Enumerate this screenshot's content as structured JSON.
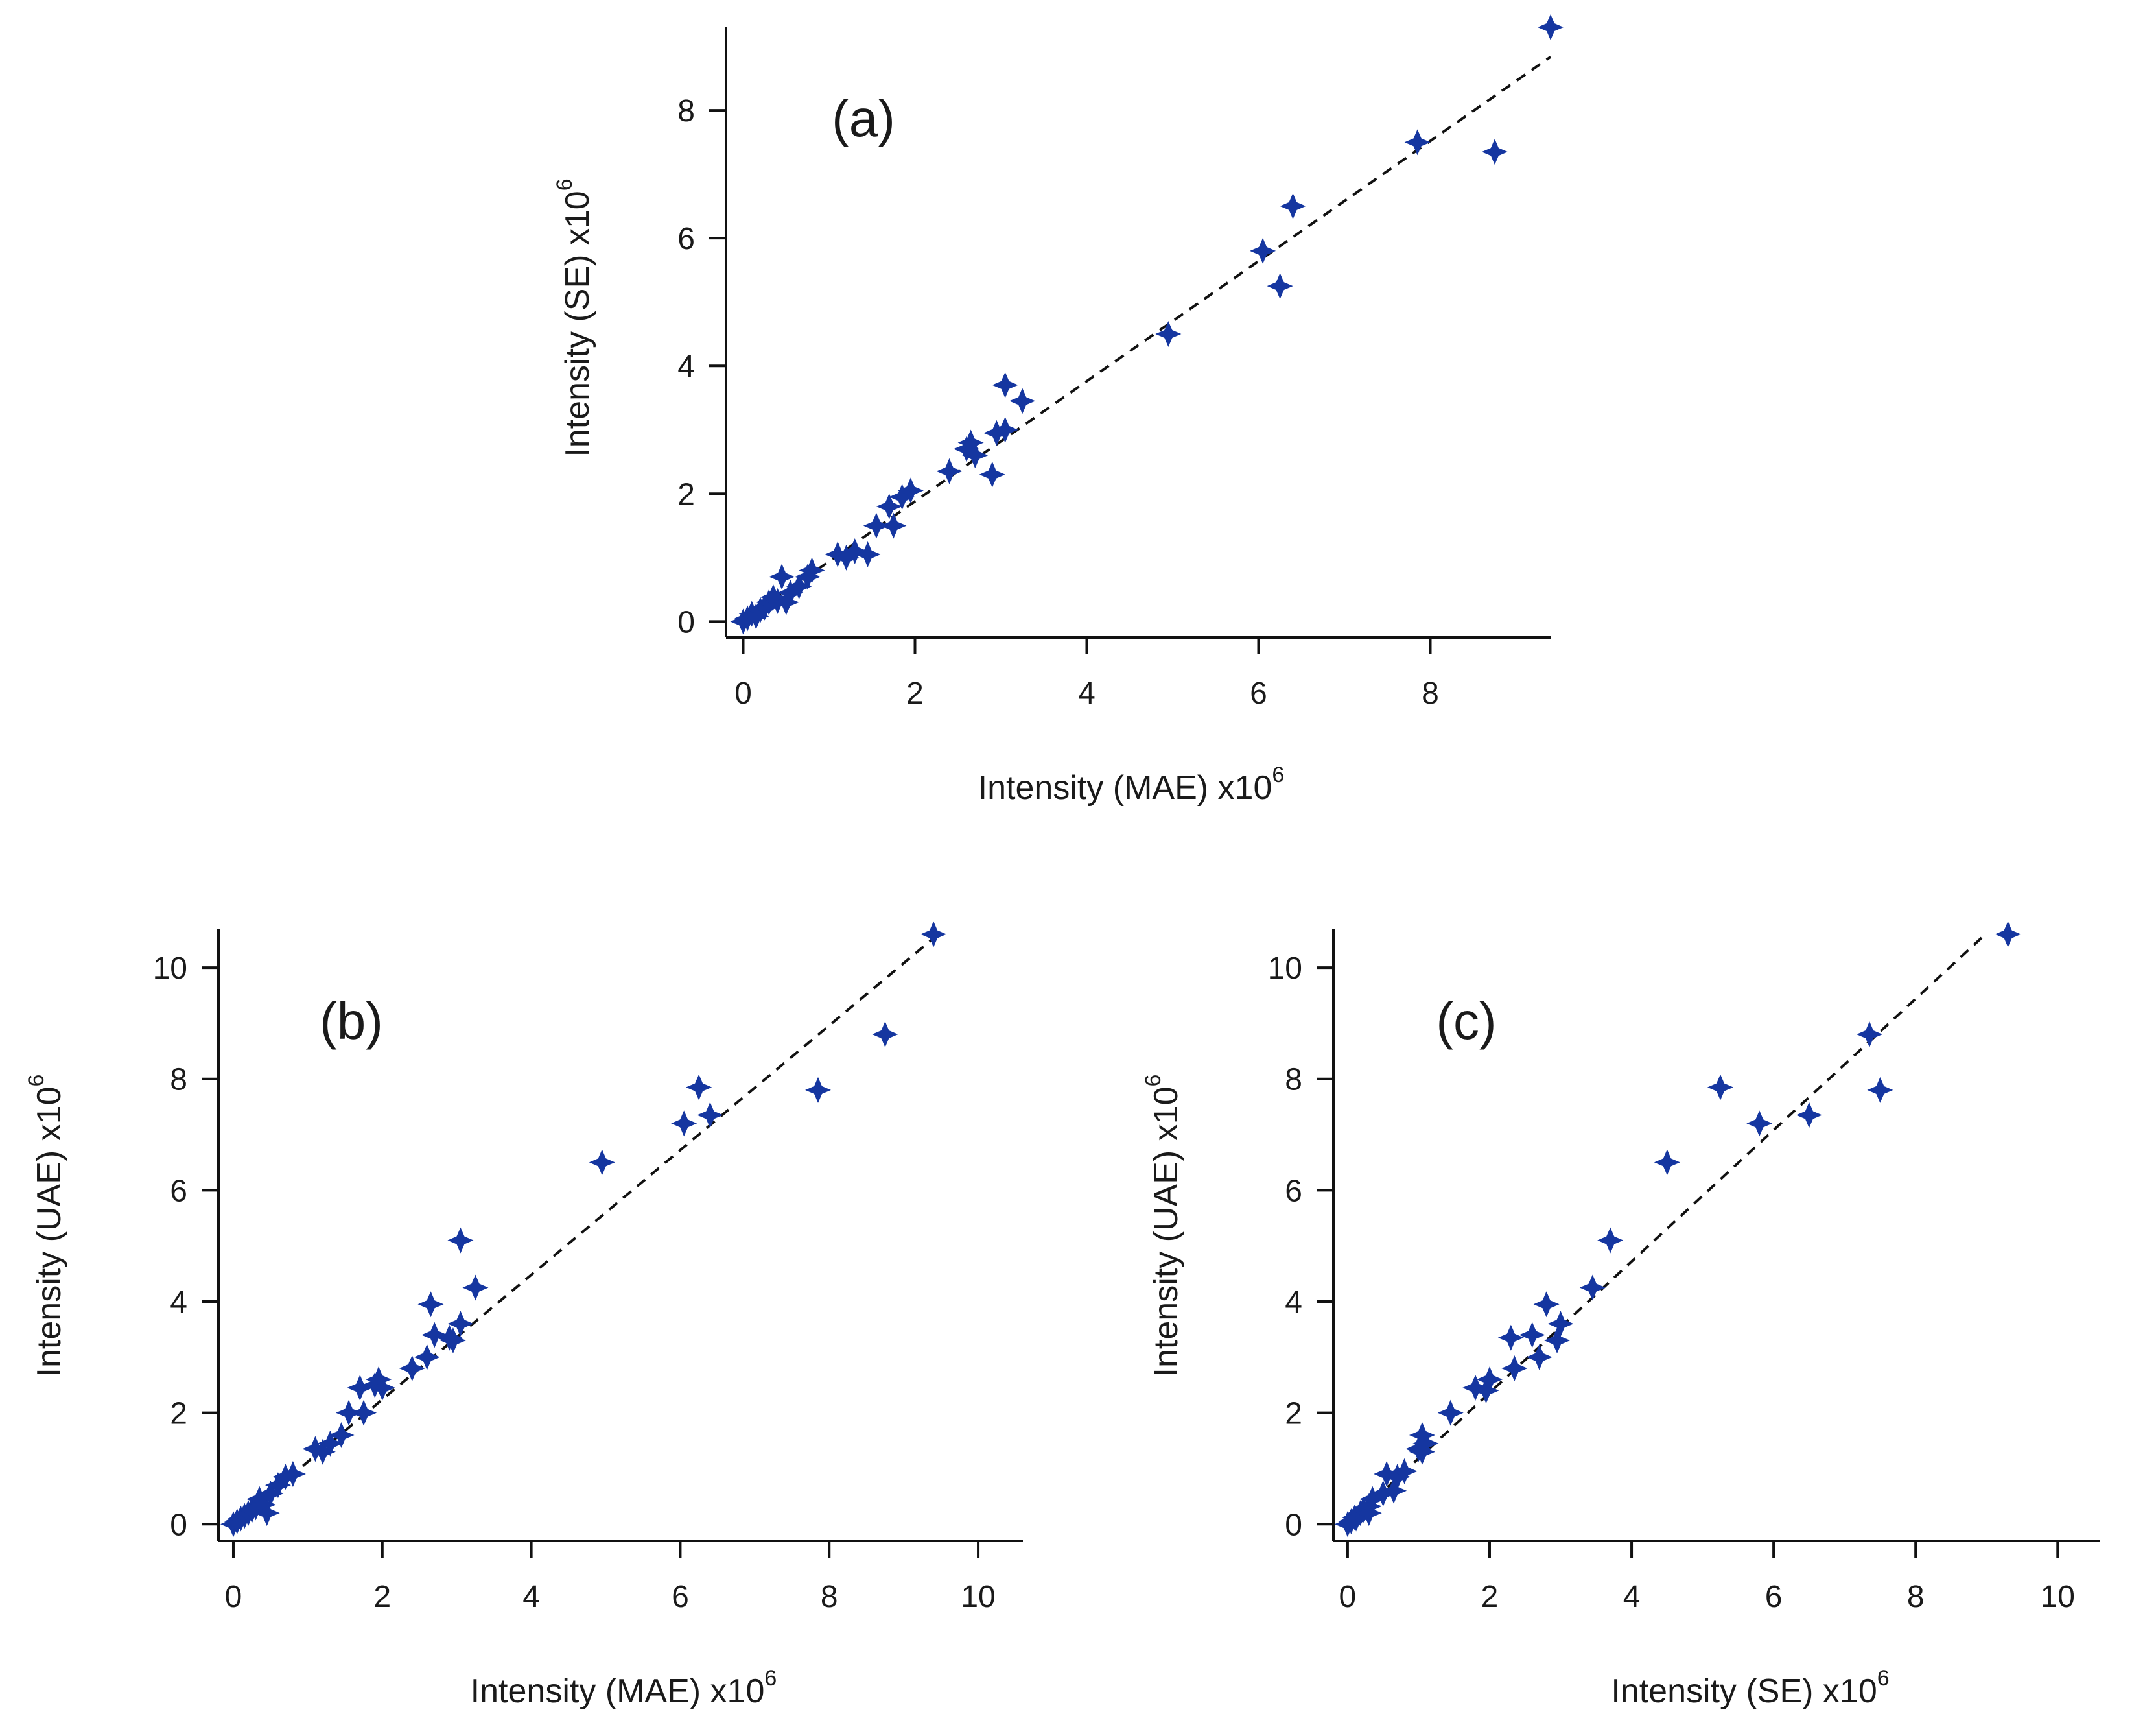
{
  "colors": {
    "marker": "#1536a0",
    "axis": "#111111",
    "background": "#ffffff"
  },
  "marker_shape": "four-point-star",
  "chart_data": [
    {
      "id": "a",
      "type": "scatter",
      "panel_label": "(a)",
      "xlabel": {
        "text": "Intensity (MAE) x10",
        "sup": "6"
      },
      "ylabel": {
        "text": "Intensity (SE) x10",
        "sup": "6"
      },
      "xlim": [
        -0.2,
        9.4
      ],
      "ylim": [
        -0.25,
        9.3
      ],
      "xticks": [
        0,
        2,
        4,
        6,
        8
      ],
      "yticks": [
        0,
        2,
        4,
        6,
        8
      ],
      "xtick_labels": [
        "0",
        "2",
        "4",
        "6",
        "8"
      ],
      "ytick_labels": [
        "0",
        "2",
        "4",
        "6",
        "8"
      ],
      "fit_line": {
        "slope": 0.94,
        "intercept": 0.0,
        "x_range": [
          0,
          9.4
        ],
        "style": "dashed"
      },
      "points": [
        [
          0.0,
          0.0
        ],
        [
          0.05,
          0.05
        ],
        [
          0.1,
          0.12
        ],
        [
          0.15,
          0.08
        ],
        [
          0.2,
          0.18
        ],
        [
          0.25,
          0.22
        ],
        [
          0.3,
          0.3
        ],
        [
          0.35,
          0.38
        ],
        [
          0.4,
          0.32
        ],
        [
          0.45,
          0.7
        ],
        [
          0.5,
          0.3
        ],
        [
          0.55,
          0.45
        ],
        [
          0.65,
          0.55
        ],
        [
          0.75,
          0.7
        ],
        [
          0.8,
          0.8
        ],
        [
          1.1,
          1.05
        ],
        [
          1.2,
          1.0
        ],
        [
          1.3,
          1.1
        ],
        [
          1.45,
          1.05
        ],
        [
          1.55,
          1.5
        ],
        [
          1.7,
          1.8
        ],
        [
          1.75,
          1.5
        ],
        [
          1.85,
          1.95
        ],
        [
          1.95,
          2.05
        ],
        [
          2.4,
          2.35
        ],
        [
          2.6,
          2.7
        ],
        [
          2.65,
          2.8
        ],
        [
          2.7,
          2.6
        ],
        [
          2.9,
          2.3
        ],
        [
          2.95,
          2.95
        ],
        [
          3.05,
          3.0
        ],
        [
          3.05,
          3.7
        ],
        [
          3.25,
          3.45
        ],
        [
          4.95,
          4.5
        ],
        [
          6.05,
          5.8
        ],
        [
          6.25,
          5.25
        ],
        [
          6.4,
          6.5
        ],
        [
          7.85,
          7.5
        ],
        [
          8.75,
          7.35
        ],
        [
          9.4,
          9.3
        ]
      ]
    },
    {
      "id": "b",
      "type": "scatter",
      "panel_label": "(b)",
      "xlabel": {
        "text": "Intensity (MAE) x10",
        "sup": "6"
      },
      "ylabel": {
        "text": "Intensity (UAE) x10",
        "sup": "6"
      },
      "xlim": [
        -0.2,
        10.6
      ],
      "ylim": [
        -0.3,
        10.7
      ],
      "xticks": [
        0,
        2,
        4,
        6,
        8,
        10
      ],
      "yticks": [
        0,
        2,
        4,
        6,
        8,
        10
      ],
      "xtick_labels": [
        "0",
        "2",
        "4",
        "6",
        "8",
        "10"
      ],
      "ytick_labels": [
        "0",
        "2",
        "4",
        "6",
        "8",
        "10"
      ],
      "fit_line": {
        "slope": 1.12,
        "intercept": 0.0,
        "x_range": [
          0,
          9.4
        ],
        "style": "dashed"
      },
      "points": [
        [
          0.0,
          0.0
        ],
        [
          0.05,
          0.05
        ],
        [
          0.1,
          0.1
        ],
        [
          0.15,
          0.15
        ],
        [
          0.2,
          0.2
        ],
        [
          0.25,
          0.25
        ],
        [
          0.3,
          0.3
        ],
        [
          0.35,
          0.45
        ],
        [
          0.4,
          0.35
        ],
        [
          0.45,
          0.2
        ],
        [
          0.5,
          0.55
        ],
        [
          0.6,
          0.7
        ],
        [
          0.7,
          0.85
        ],
        [
          0.8,
          0.9
        ],
        [
          1.1,
          1.35
        ],
        [
          1.2,
          1.3
        ],
        [
          1.3,
          1.45
        ],
        [
          1.45,
          1.6
        ],
        [
          1.55,
          2.0
        ],
        [
          1.7,
          2.45
        ],
        [
          1.75,
          2.0
        ],
        [
          1.9,
          2.5
        ],
        [
          1.95,
          2.6
        ],
        [
          2.0,
          2.45
        ],
        [
          2.4,
          2.8
        ],
        [
          2.6,
          3.0
        ],
        [
          2.65,
          3.95
        ],
        [
          2.7,
          3.4
        ],
        [
          2.9,
          3.35
        ],
        [
          2.95,
          3.3
        ],
        [
          3.05,
          3.6
        ],
        [
          3.05,
          5.1
        ],
        [
          3.25,
          4.25
        ],
        [
          4.95,
          6.5
        ],
        [
          6.05,
          7.2
        ],
        [
          6.25,
          7.85
        ],
        [
          6.4,
          7.35
        ],
        [
          7.85,
          7.8
        ],
        [
          8.75,
          8.8
        ],
        [
          9.4,
          10.6
        ]
      ]
    },
    {
      "id": "c",
      "type": "scatter",
      "panel_label": "(c)",
      "xlabel": {
        "text": "Intensity (SE) x10",
        "sup": "6"
      },
      "ylabel": {
        "text": "Intensity (UAE) x10",
        "sup": "6"
      },
      "xlim": [
        -0.2,
        10.6
      ],
      "ylim": [
        -0.3,
        10.7
      ],
      "xticks": [
        0,
        2,
        4,
        6,
        8,
        10
      ],
      "yticks": [
        0,
        2,
        4,
        6,
        8,
        10
      ],
      "xtick_labels": [
        "0",
        "2",
        "4",
        "6",
        "8",
        "10"
      ],
      "ytick_labels": [
        "0",
        "2",
        "4",
        "6",
        "8",
        "10"
      ],
      "fit_line": {
        "slope": 1.18,
        "intercept": 0.0,
        "x_range": [
          0,
          9.0
        ],
        "style": "dashed"
      },
      "points": [
        [
          0.0,
          0.0
        ],
        [
          0.05,
          0.05
        ],
        [
          0.1,
          0.12
        ],
        [
          0.12,
          0.1
        ],
        [
          0.18,
          0.2
        ],
        [
          0.22,
          0.25
        ],
        [
          0.3,
          0.32
        ],
        [
          0.3,
          0.2
        ],
        [
          0.35,
          0.45
        ],
        [
          0.5,
          0.55
        ],
        [
          0.55,
          0.9
        ],
        [
          0.65,
          0.6
        ],
        [
          0.7,
          0.85
        ],
        [
          0.8,
          0.95
        ],
        [
          1.0,
          1.35
        ],
        [
          1.05,
          1.3
        ],
        [
          1.05,
          1.6
        ],
        [
          1.1,
          1.45
        ],
        [
          1.45,
          2.0
        ],
        [
          1.8,
          2.45
        ],
        [
          1.95,
          2.4
        ],
        [
          2.0,
          2.6
        ],
        [
          2.3,
          3.35
        ],
        [
          2.35,
          2.8
        ],
        [
          2.6,
          3.4
        ],
        [
          2.7,
          3.0
        ],
        [
          2.8,
          3.95
        ],
        [
          2.95,
          3.3
        ],
        [
          3.0,
          3.6
        ],
        [
          3.45,
          4.25
        ],
        [
          3.7,
          5.1
        ],
        [
          4.5,
          6.5
        ],
        [
          5.25,
          7.85
        ],
        [
          5.8,
          7.2
        ],
        [
          6.5,
          7.35
        ],
        [
          7.35,
          8.8
        ],
        [
          7.5,
          7.8
        ],
        [
          9.3,
          10.6
        ]
      ]
    }
  ]
}
